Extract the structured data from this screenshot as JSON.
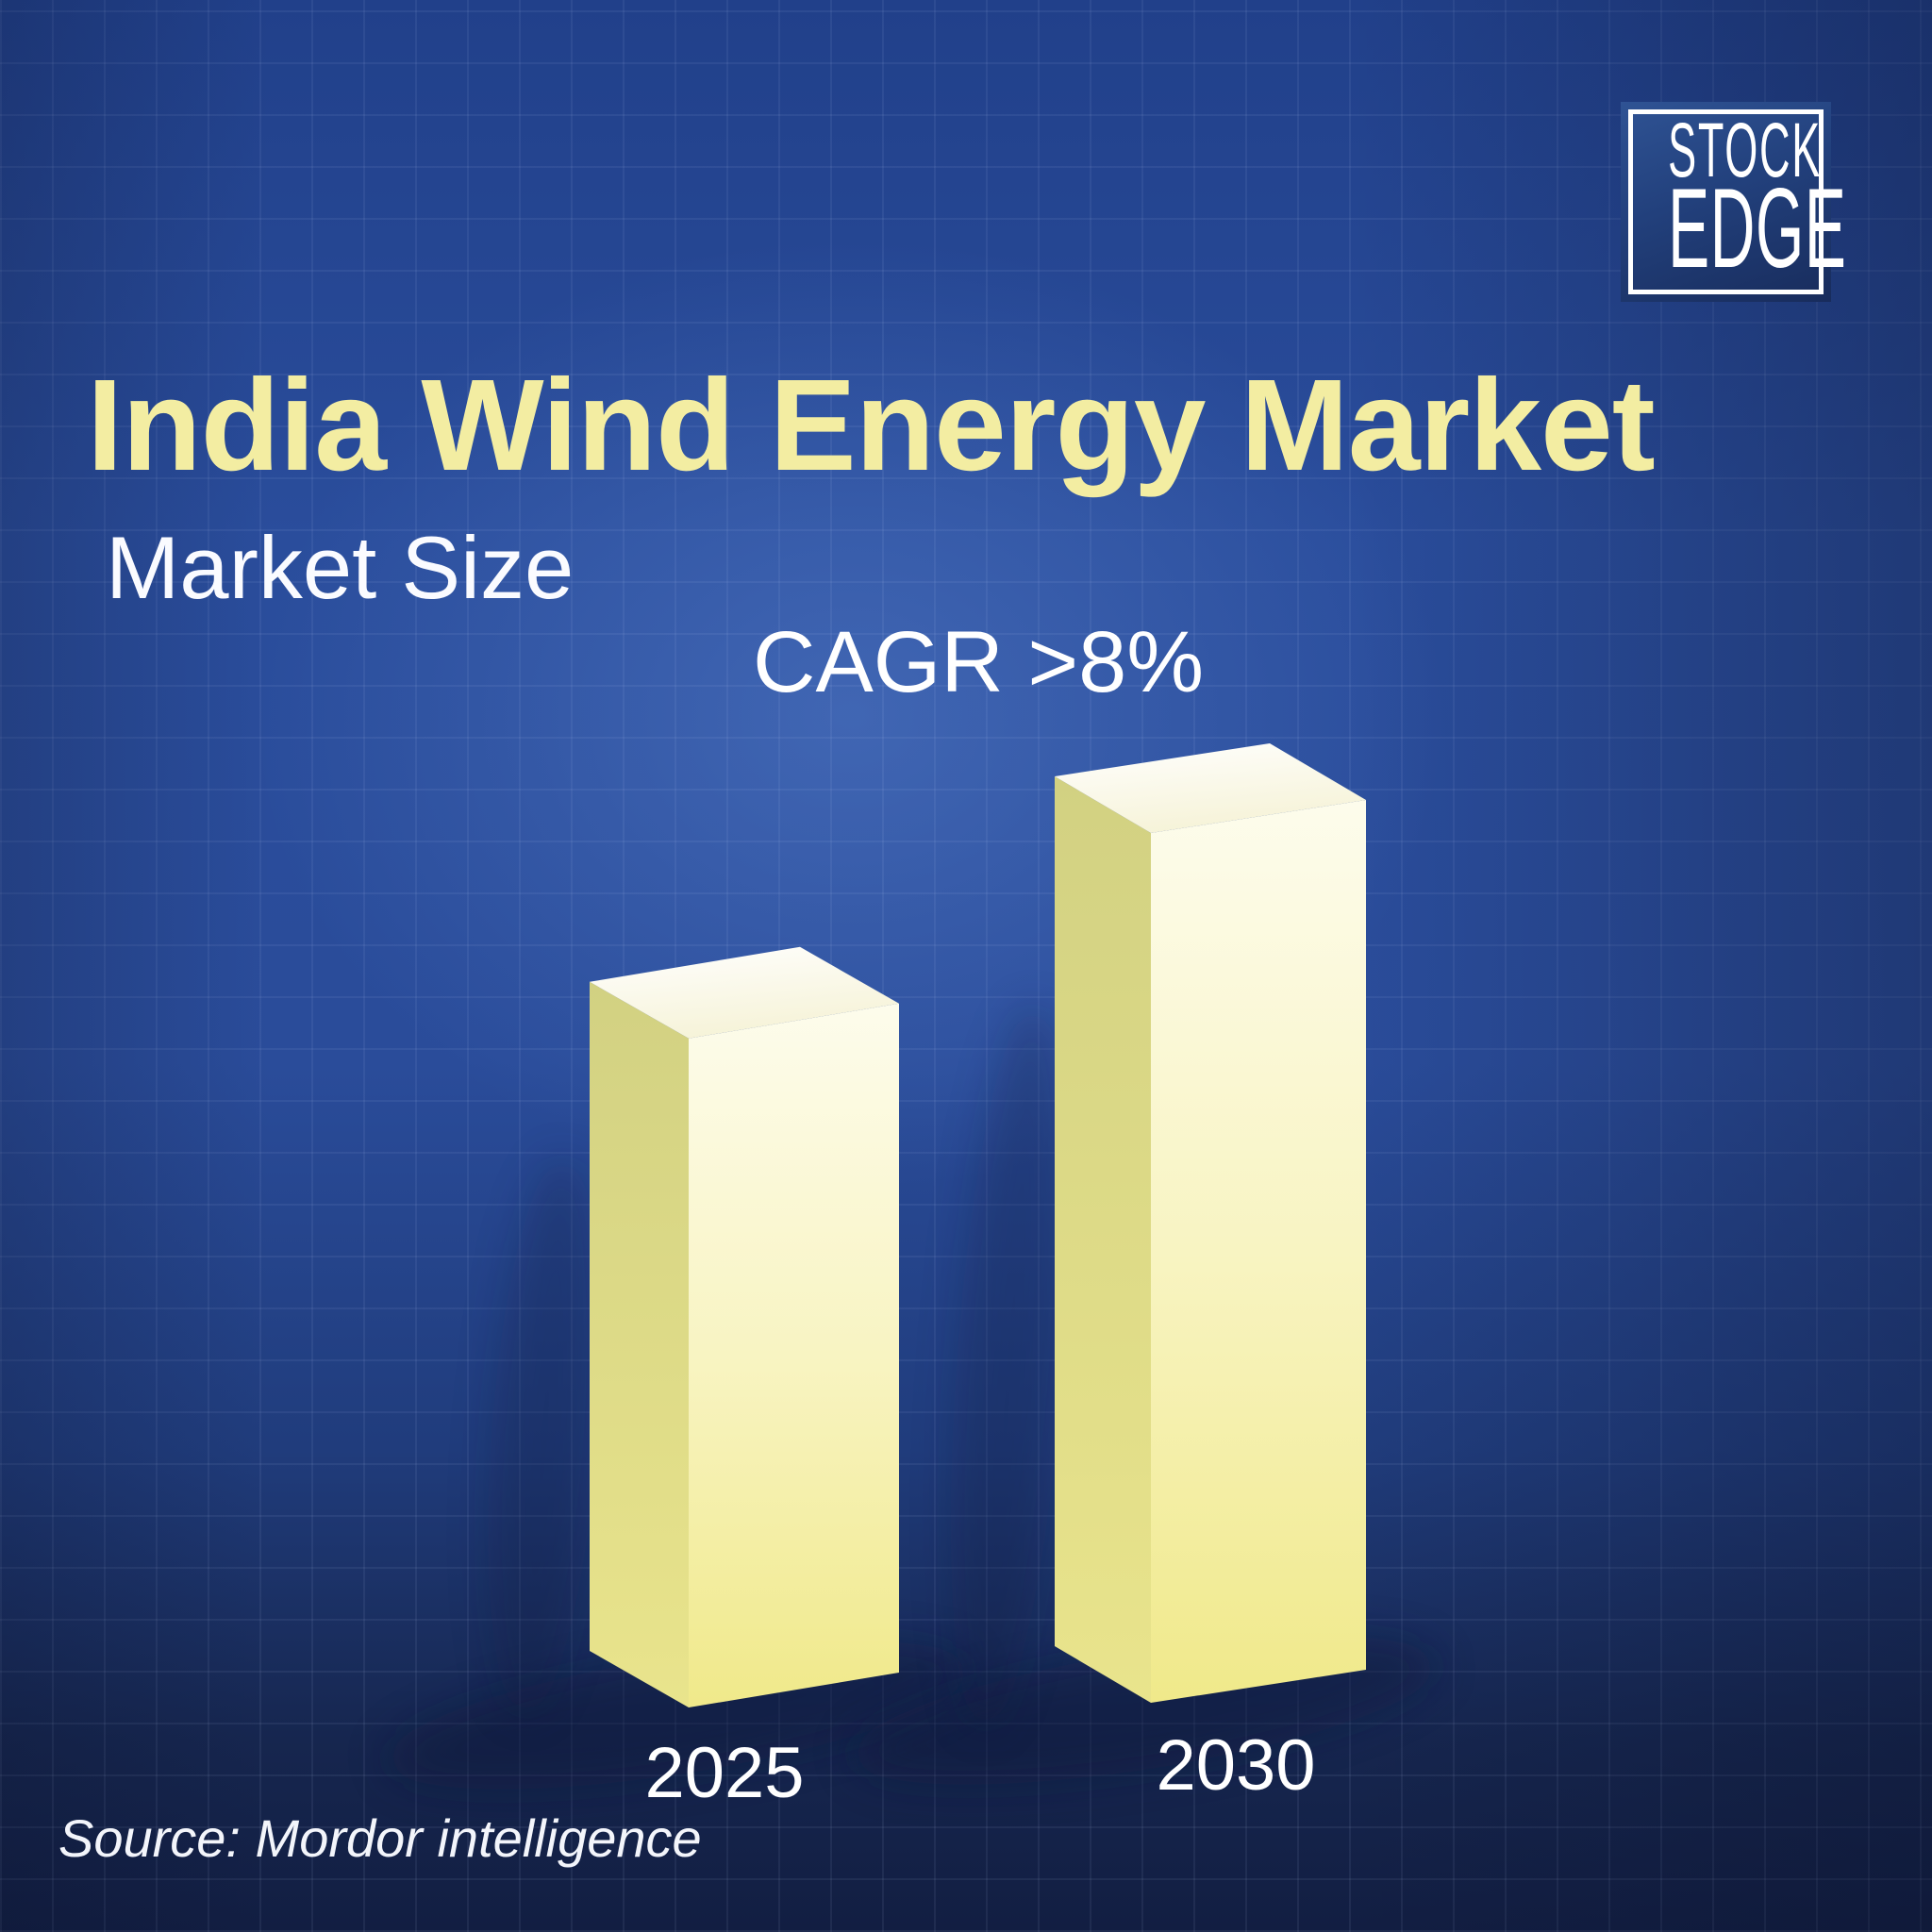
{
  "header": {
    "title": "India Wind Energy Market",
    "subtitle": "Market Size"
  },
  "logo": {
    "line1": "STOCK",
    "line2": "EDGE"
  },
  "chart_data": {
    "type": "bar",
    "title": "India Wind Energy Market",
    "subtitle": "Market Size",
    "annotation": "CAGR >8%",
    "categories": [
      "2025",
      "2030"
    ],
    "series": [
      {
        "name": "Market Size (values not labeled; relative bar heights estimated from pixels)",
        "values": [
          1.0,
          1.3
        ]
      }
    ],
    "value_labels_shown": false,
    "orientation": "vertical-3d",
    "legend": "none",
    "xlabel": "",
    "ylabel": "",
    "grid": "faint blueprint grid in background",
    "colors": {
      "bar_top": "#FFFFFF",
      "bar_front_light": "#FDFCEC",
      "bar_front_dark": "#F0E98A",
      "bar_side_light": "#E9E48C",
      "bar_side_dark": "#D2D182",
      "title_text": "#F3EDA2",
      "body_text": "#FFFFFF",
      "background_center": "#2E52A5",
      "background_edge": "#15244E"
    }
  },
  "footer": {
    "source": "Source: Mordor intelligence"
  }
}
